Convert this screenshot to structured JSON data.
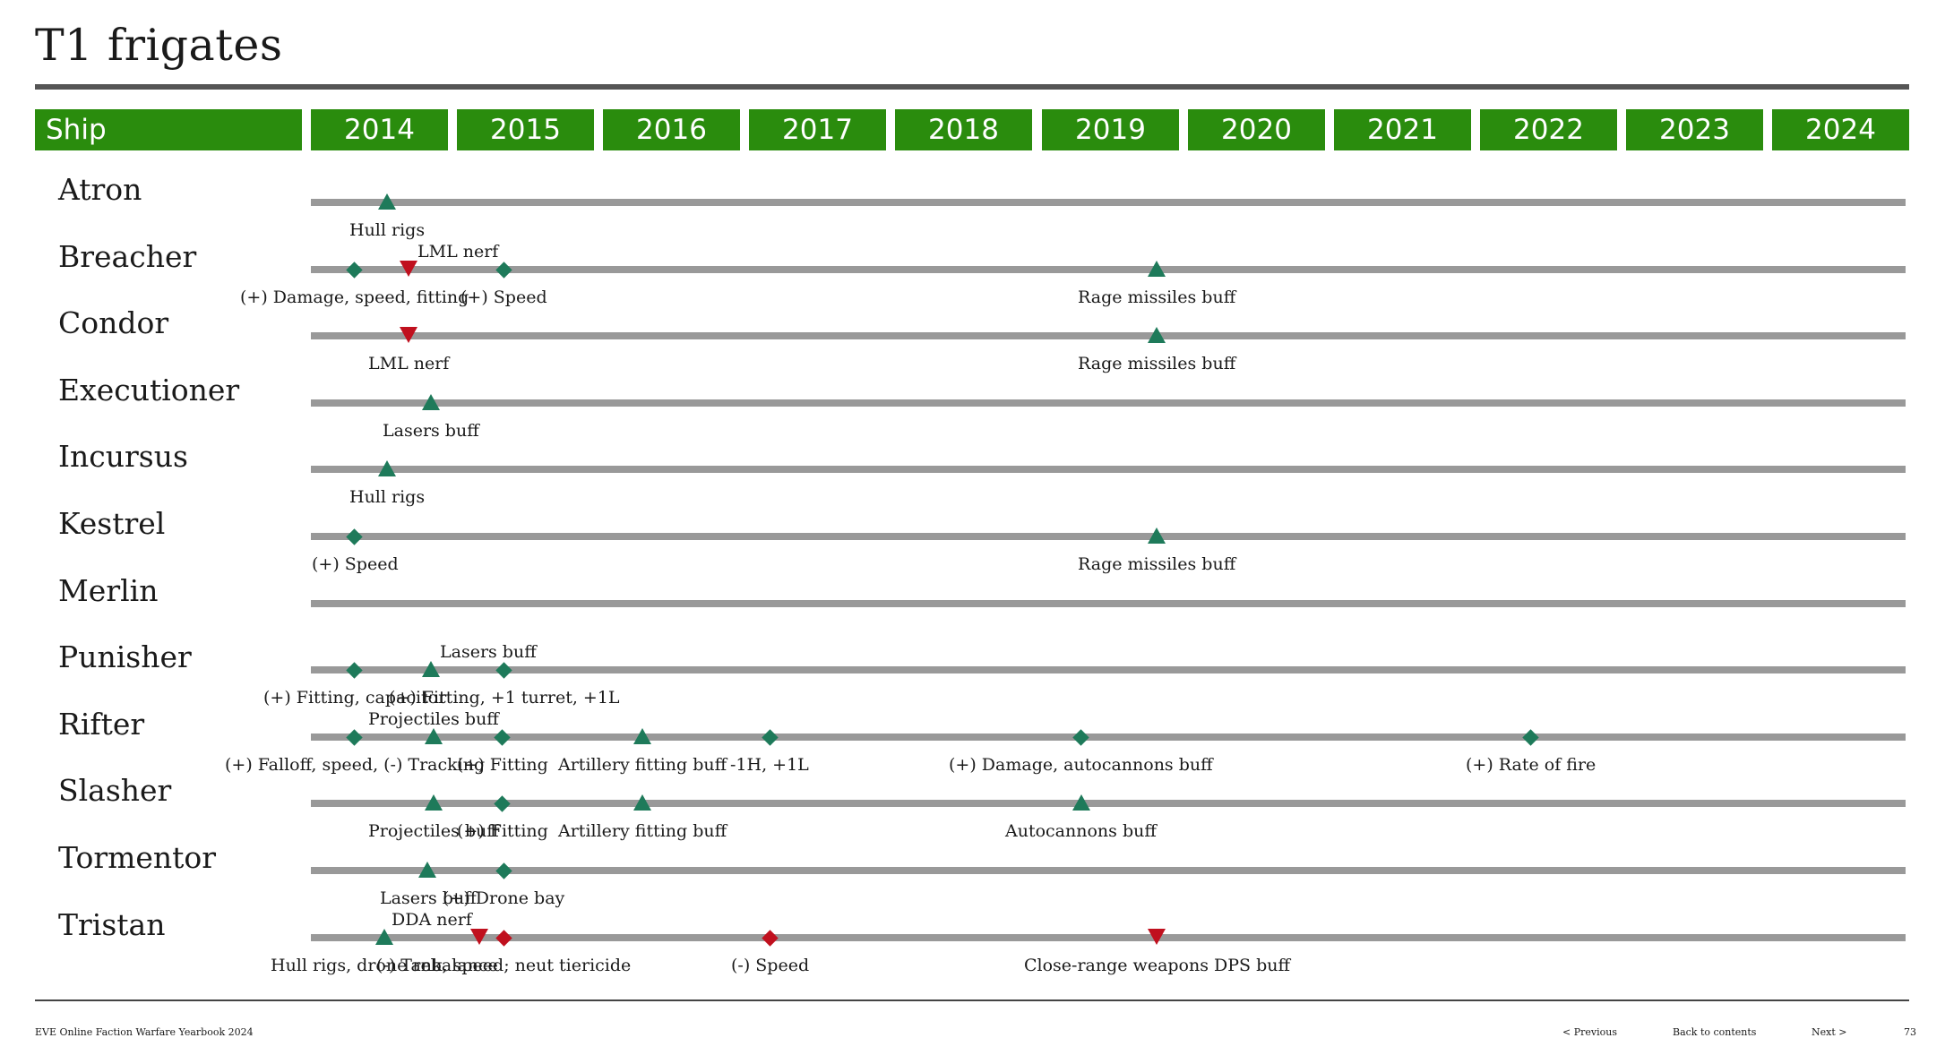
{
  "title": "T1 frigates",
  "header": {
    "ship_label": "Ship",
    "years": [
      "2014",
      "2015",
      "2016",
      "2017",
      "2018",
      "2019",
      "2020",
      "2021",
      "2022",
      "2023",
      "2024"
    ]
  },
  "colors": {
    "header_green": "#2a8c0d",
    "buff_green": "#1e7a5a",
    "nerf_red": "#c0101e",
    "track_gray": "#999999"
  },
  "ships": [
    {
      "name": "Atron",
      "events": [
        {
          "year": 2014.52,
          "type": "buff",
          "shape": "triangle",
          "label": "Hull rigs",
          "pos": "below"
        }
      ]
    },
    {
      "name": "Breacher",
      "events": [
        {
          "year": 2014.3,
          "type": "buff",
          "shape": "diamond",
          "label": "(+) Damage, speed, fitting",
          "pos": "below"
        },
        {
          "year": 2014.67,
          "type": "nerf",
          "shape": "triangle",
          "label": "LML nerf",
          "pos": "above-right"
        },
        {
          "year": 2015.32,
          "type": "buff",
          "shape": "diamond",
          "label": "(+) Speed",
          "pos": "below"
        },
        {
          "year": 2019.79,
          "type": "buff",
          "shape": "triangle",
          "label": "Rage missiles buff",
          "pos": "below"
        }
      ]
    },
    {
      "name": "Condor",
      "events": [
        {
          "year": 2014.67,
          "type": "nerf",
          "shape": "triangle",
          "label": "LML nerf",
          "pos": "below"
        },
        {
          "year": 2019.79,
          "type": "buff",
          "shape": "triangle",
          "label": "Rage missiles buff",
          "pos": "below"
        }
      ]
    },
    {
      "name": "Executioner",
      "events": [
        {
          "year": 2014.82,
          "type": "buff",
          "shape": "triangle",
          "label": "Lasers buff",
          "pos": "below"
        }
      ]
    },
    {
      "name": "Incursus",
      "events": [
        {
          "year": 2014.52,
          "type": "buff",
          "shape": "triangle",
          "label": "Hull rigs",
          "pos": "below"
        }
      ]
    },
    {
      "name": "Kestrel",
      "events": [
        {
          "year": 2014.3,
          "type": "buff",
          "shape": "diamond",
          "label": "(+) Speed",
          "pos": "below"
        },
        {
          "year": 2019.79,
          "type": "buff",
          "shape": "triangle",
          "label": "Rage missiles buff",
          "pos": "below"
        }
      ]
    },
    {
      "name": "Merlin",
      "events": []
    },
    {
      "name": "Punisher",
      "events": [
        {
          "year": 2014.3,
          "type": "buff",
          "shape": "diamond",
          "label": "(+) Fitting, capacitor",
          "pos": "below"
        },
        {
          "year": 2014.82,
          "type": "buff",
          "shape": "triangle",
          "label": "Lasers buff",
          "pos": "above-right"
        },
        {
          "year": 2015.32,
          "type": "buff",
          "shape": "diamond",
          "label": "(+) Fitting, +1 turret, +1L",
          "pos": "below"
        }
      ]
    },
    {
      "name": "Rifter",
      "events": [
        {
          "year": 2014.3,
          "type": "buff",
          "shape": "diamond",
          "label": "(+) Falloff, speed, (-) Tracking",
          "pos": "below"
        },
        {
          "year": 2014.84,
          "type": "buff",
          "shape": "triangle",
          "label": "Projectiles buff",
          "pos": "above"
        },
        {
          "year": 2015.31,
          "type": "buff",
          "shape": "diamond",
          "label": "(+) Fitting",
          "pos": "below"
        },
        {
          "year": 2016.27,
          "type": "buff",
          "shape": "triangle",
          "label": "Artillery fitting buff",
          "pos": "below"
        },
        {
          "year": 2017.14,
          "type": "buff",
          "shape": "diamond",
          "label": "-1H, +1L",
          "pos": "below"
        },
        {
          "year": 2019.27,
          "type": "buff",
          "shape": "diamond",
          "label": "(+) Damage, autocannons buff",
          "pos": "below"
        },
        {
          "year": 2022.35,
          "type": "buff",
          "shape": "diamond",
          "label": "(+) Rate of fire",
          "pos": "below"
        }
      ]
    },
    {
      "name": "Slasher",
      "events": [
        {
          "year": 2014.84,
          "type": "buff",
          "shape": "triangle",
          "label": "Projectiles buff",
          "pos": "below"
        },
        {
          "year": 2015.31,
          "type": "buff",
          "shape": "diamond",
          "label": "(+) Fitting",
          "pos": "below"
        },
        {
          "year": 2016.27,
          "type": "buff",
          "shape": "triangle",
          "label": "Artillery fitting buff",
          "pos": "below"
        },
        {
          "year": 2019.27,
          "type": "buff",
          "shape": "triangle",
          "label": "Autocannons buff",
          "pos": "below"
        }
      ]
    },
    {
      "name": "Tormentor",
      "events": [
        {
          "year": 2014.8,
          "type": "buff",
          "shape": "triangle",
          "label": "Lasers buff",
          "pos": "below"
        },
        {
          "year": 2015.32,
          "type": "buff",
          "shape": "diamond",
          "label": "(+) Drone bay",
          "pos": "below"
        }
      ]
    },
    {
      "name": "Tristan",
      "events": [
        {
          "year": 2014.5,
          "type": "buff",
          "shape": "triangle",
          "label": "Hull rigs, drone rebalance",
          "pos": "below"
        },
        {
          "year": 2015.15,
          "type": "nerf",
          "shape": "triangle",
          "label": "DDA nerf",
          "pos": "above-left"
        },
        {
          "year": 2015.32,
          "type": "nerf",
          "shape": "diamond",
          "label": "(-) Tank, speed; neut tiericide",
          "pos": "below"
        },
        {
          "year": 2017.14,
          "type": "nerf",
          "shape": "diamond",
          "label": "(-) Speed",
          "pos": "below"
        },
        {
          "year": 2019.79,
          "type": "nerf",
          "shape": "triangle",
          "label": "Close-range weapons DPS buff",
          "pos": "below"
        }
      ]
    }
  ],
  "footer": {
    "publication": "EVE Online Faction Warfare Yearbook 2024",
    "previous": "< Previous",
    "contents": "Back to contents",
    "next": "Next >",
    "page": "73"
  }
}
